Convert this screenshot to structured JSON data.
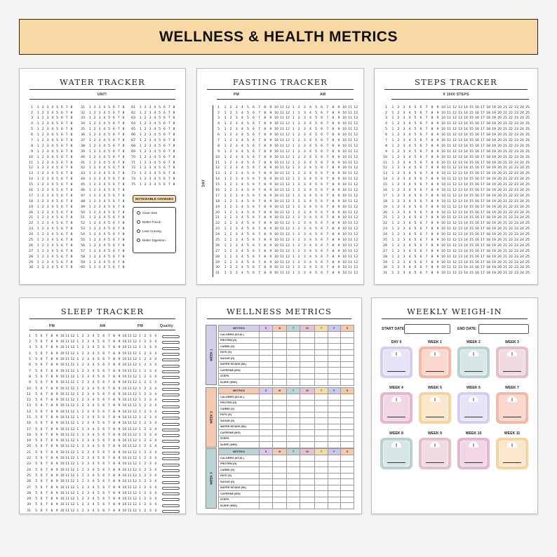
{
  "banner": {
    "title": "WELLNESS & HEALTH METRICS",
    "color": "#f8d9a6"
  },
  "water": {
    "title": "WATER TRACKER",
    "unit_label": "UNIT:",
    "noticeable_label": "NOTICEABLE CHANGES",
    "changes": [
      "Clear Skin",
      "Better Focus",
      "Less Craving",
      "Better Digestion"
    ],
    "cells": [
      "1",
      "2",
      "3",
      "4",
      "5",
      "6",
      "7",
      "8"
    ],
    "col1_start": 1,
    "col1_end": 30,
    "col2_start": 31,
    "col2_end": 60,
    "col3_start": 61,
    "col3_end": 75
  },
  "fasting": {
    "title": "FASTING TRACKER",
    "pm_label": "PM",
    "am_label": "AM",
    "day_label": "DAY",
    "cells": [
      "1",
      "2",
      "3",
      "4",
      "5",
      "6",
      "7",
      "8",
      "9",
      "10",
      "11",
      "12",
      "1",
      "2",
      "3",
      "4",
      "5",
      "6",
      "7",
      "8",
      "9",
      "10",
      "11",
      "12"
    ],
    "rows": 31
  },
  "steps": {
    "title": "STEPS TRACKER",
    "unit_label": "X 1000 STEPS",
    "cells": [
      "1",
      "2",
      "3",
      "4",
      "5",
      "6",
      "7",
      "8",
      "9",
      "10",
      "11",
      "12",
      "13",
      "14",
      "15",
      "16",
      "17",
      "18",
      "19",
      "20",
      "21",
      "22",
      "23",
      "24",
      "25"
    ],
    "rows": 31
  },
  "sleep": {
    "title": "SLEEP TRACKER",
    "pm_label": "PM",
    "am_label": "AM",
    "pm2_label": "PM",
    "quality_label": "Quality",
    "cells": [
      "5",
      "6",
      "7",
      "8",
      "9",
      "10",
      "11",
      "12",
      "1",
      "2",
      "3",
      "4",
      "5",
      "6",
      "7",
      "8",
      "9",
      "10",
      "11",
      "12",
      "1",
      "2",
      "3",
      "4"
    ],
    "rows": 31
  },
  "wellness": {
    "title": "WELLNESS METRICS",
    "metrics_header": "METRICS",
    "days": [
      "S",
      "M",
      "T",
      "W",
      "T",
      "F",
      "S"
    ],
    "day_colors": [
      "#d9c8ef",
      "#f6c9b3",
      "#bcd4d4",
      "#e8c1d0",
      "#f6dba8",
      "#c9c8f0",
      "#f7c8a8"
    ],
    "weeks": [
      {
        "label": "WEEK 1",
        "color": "#d6cde9"
      },
      {
        "label": "WEEK 2",
        "color": "#f6c9b3"
      },
      {
        "label": "WEEK 3",
        "color": "#bcd4d4"
      }
    ],
    "metrics": [
      "CALORIES (KCAL)",
      "PROTEIN (G)",
      "CARBS (G)",
      "FATS (G)",
      "SUGAR (G)",
      "WATER INTAKE (ML)",
      "CAFFEINE (MG)",
      "STEPS",
      "SLEEP (HRS)"
    ]
  },
  "weigh": {
    "title": "WEEKLY WEIGH-IN",
    "start_label": "START DATE:",
    "end_label": "END DATE:",
    "weeks": [
      {
        "label": "DAY 0",
        "color": "#d7cdf2"
      },
      {
        "label": "WEEK 1",
        "color": "#f6b8a4"
      },
      {
        "label": "WEEK 2",
        "color": "#b8d2d0"
      },
      {
        "label": "WEEK 3",
        "color": "#e4bfc6"
      },
      {
        "label": "WEEK 4",
        "color": "#e6b6d0"
      },
      {
        "label": "WEEK 5",
        "color": "#f8d3a0"
      },
      {
        "label": "WEEK 6",
        "color": "#d7cdf2"
      },
      {
        "label": "WEEK 7",
        "color": "#f6b8a4"
      },
      {
        "label": "WEEK 8",
        "color": "#b8d2d0"
      },
      {
        "label": "WEEK 9",
        "color": "#e4bfc6"
      },
      {
        "label": "WEEK 10",
        "color": "#e6b6d0"
      },
      {
        "label": "WEEK 11",
        "color": "#f8d3a0"
      }
    ]
  }
}
